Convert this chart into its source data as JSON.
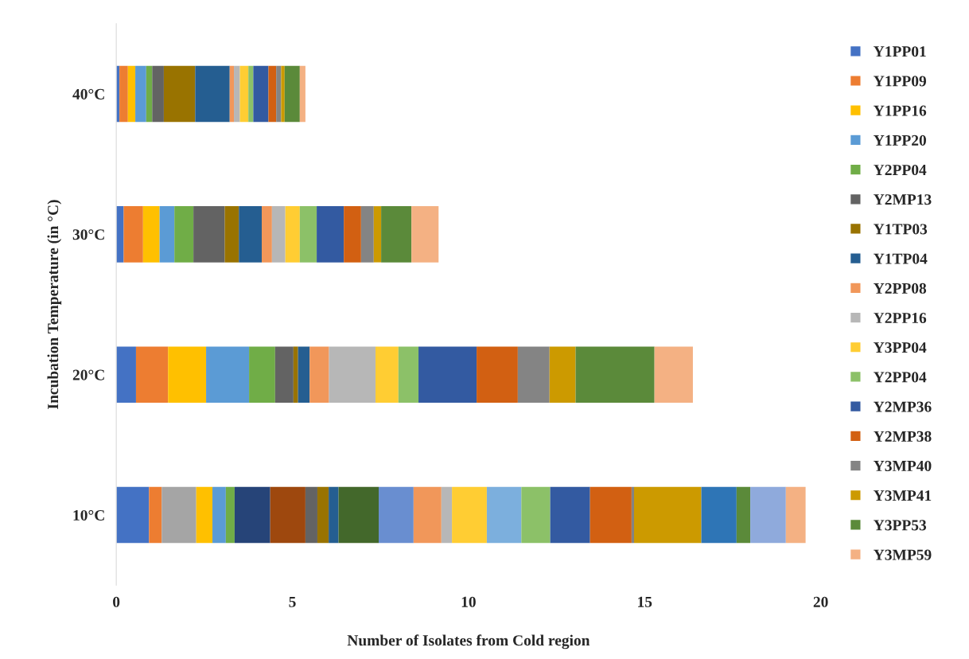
{
  "chart_data": {
    "type": "bar",
    "orientation": "horizontal",
    "stacked": true,
    "xlabel": "Number of Isolates from Cold region",
    "ylabel": "Incubation Temperature (in °C)",
    "categories": [
      "40°C",
      "30°C",
      "20°C",
      "10°C"
    ],
    "xlim": [
      0,
      20
    ],
    "xticks": [
      0,
      5,
      10,
      15,
      20
    ],
    "grid": false,
    "legend": "right",
    "series": [
      {
        "name": "Y1PP01",
        "color": "#4472c4",
        "values": [
          0.09,
          0.21,
          0.56,
          0.93
        ]
      },
      {
        "name": "Y1PP09",
        "color": "#ed7d31",
        "values": [
          0.24,
          0.55,
          0.91,
          0.36
        ]
      },
      {
        "color": "#a5a5a5",
        "values": [
          null,
          null,
          null,
          0.98
        ]
      },
      {
        "name": "Y1PP16",
        "color": "#ffc000",
        "values": [
          0.21,
          0.47,
          1.08,
          0.46
        ]
      },
      {
        "name": "Y1PP20",
        "color": "#5b9bd5",
        "values": [
          0.31,
          0.42,
          1.22,
          0.38
        ]
      },
      {
        "name": "Y2PP04",
        "color": "#70ad47",
        "values": [
          0.17,
          0.54,
          0.74,
          0.25
        ]
      },
      {
        "color": "#264478",
        "values": [
          null,
          null,
          null,
          1.01
        ]
      },
      {
        "color": "#9e480e",
        "values": [
          null,
          null,
          null,
          1.0
        ]
      },
      {
        "name": "Y2MP13",
        "color": "#636363",
        "values": [
          0.33,
          0.89,
          0.52,
          0.34
        ]
      },
      {
        "name": "Y1TP03",
        "color": "#997300",
        "values": [
          0.89,
          0.4,
          0.13,
          0.32
        ]
      },
      {
        "name": "Y1TP04",
        "color": "#255e91",
        "values": [
          0.98,
          0.65,
          0.33,
          0.28
        ]
      },
      {
        "color": "#43682b",
        "values": [
          null,
          null,
          null,
          1.14
        ]
      },
      {
        "color": "#698ed0",
        "values": [
          null,
          null,
          null,
          0.99
        ]
      },
      {
        "name": "Y2PP08",
        "color": "#f1975a",
        "values": [
          0.12,
          0.29,
          0.55,
          0.79
        ]
      },
      {
        "name": "Y2PP16",
        "color": "#b7b7b7",
        "values": [
          0.17,
          0.38,
          1.32,
          0.3
        ]
      },
      {
        "name": "Y3PP04",
        "color": "#ffcd33",
        "values": [
          0.24,
          0.41,
          0.65,
          0.99
        ]
      },
      {
        "color": "#7cafdd",
        "values": [
          null,
          null,
          null,
          0.98
        ]
      },
      {
        "name": "Y2PP04",
        "color": "#8cc168",
        "values": [
          0.14,
          0.48,
          0.57,
          0.82
        ]
      },
      {
        "name": "Y2MP36",
        "color": "#335aa1",
        "values": [
          0.43,
          0.77,
          1.65,
          1.13
        ]
      },
      {
        "name": "Y2MP38",
        "color": "#d26012",
        "values": [
          0.22,
          0.49,
          1.17,
          1.18
        ]
      },
      {
        "name": "Y3MP40",
        "color": "#848484",
        "values": [
          0.14,
          0.36,
          0.9,
          0.07
        ]
      },
      {
        "name": "Y3MP41",
        "color": "#cc9a00",
        "values": [
          0.1,
          0.21,
          0.74,
          1.91
        ]
      },
      {
        "color": "#2e75b6",
        "values": [
          null,
          null,
          null,
          1.0
        ]
      },
      {
        "name": "Y3PP53",
        "color": "#5b8a3a",
        "values": [
          0.43,
          0.86,
          2.24,
          0.39
        ]
      },
      {
        "color": "#8faadc",
        "values": [
          null,
          null,
          null,
          1.01
        ]
      },
      {
        "name": "Y3MP59",
        "color": "#f4b183",
        "values": [
          0.16,
          0.77,
          1.09,
          0.56
        ]
      }
    ]
  }
}
